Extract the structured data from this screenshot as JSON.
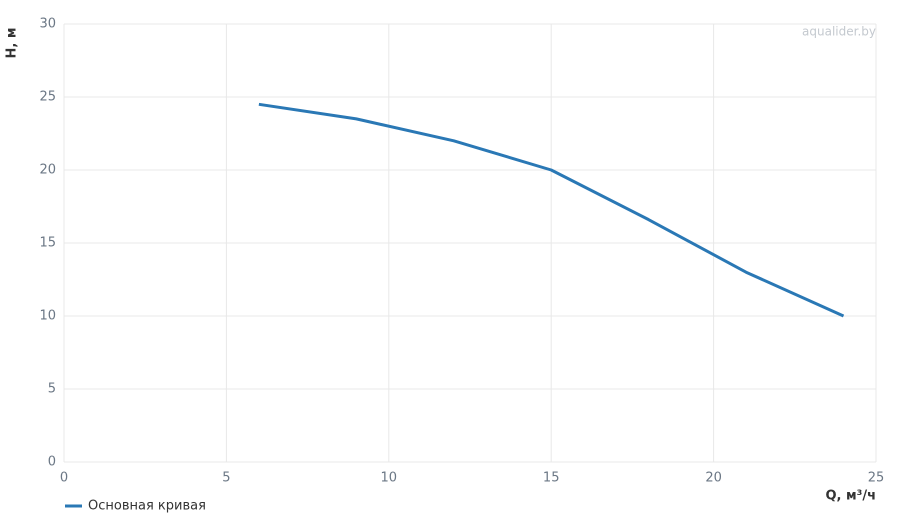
{
  "chart_data": {
    "type": "line",
    "x_label": "Q, м³/ч",
    "y_label": "Н, м",
    "watermark": "aqualider.by",
    "x": [
      6,
      9,
      12,
      15,
      18,
      21,
      24
    ],
    "series": [
      {
        "name": "Основная кривая",
        "color": "#2a78b5",
        "values": [
          24.5,
          23.5,
          22,
          20,
          16.6,
          13,
          10
        ]
      }
    ],
    "xlim": [
      0,
      25
    ],
    "xticks": [
      0,
      5,
      10,
      15,
      20,
      25
    ],
    "ylim": [
      0,
      30
    ],
    "yticks": [
      0,
      5,
      10,
      15,
      20,
      25,
      30
    ],
    "grid": true
  }
}
